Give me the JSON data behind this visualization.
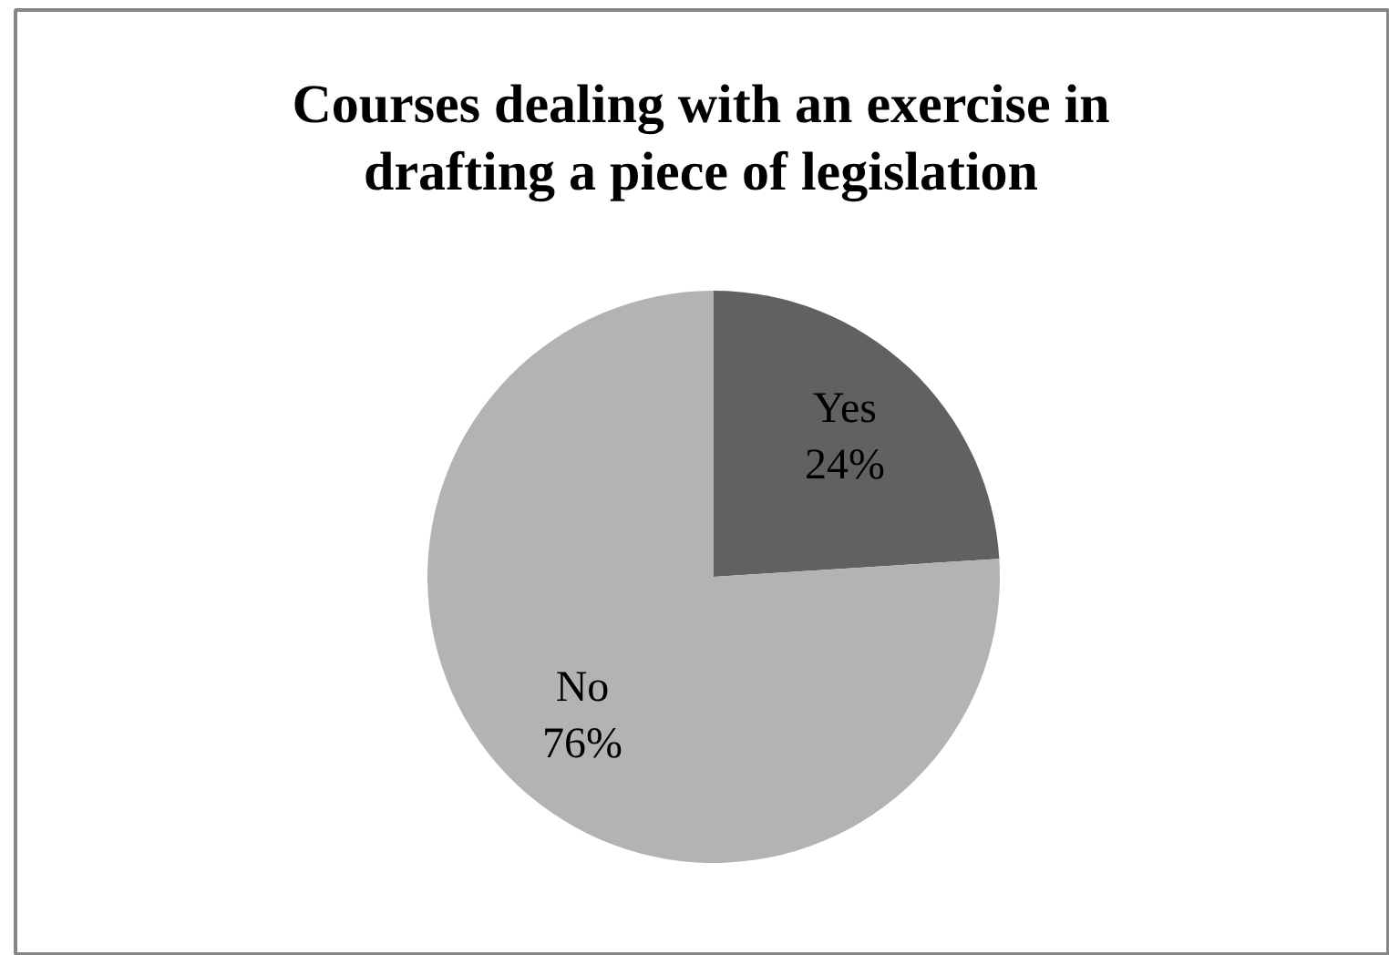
{
  "chart_data": {
    "type": "pie",
    "title": "Courses dealing with an exercise in drafting a piece of legislation",
    "categories": [
      "Yes",
      "No"
    ],
    "values": [
      24,
      76
    ],
    "colors": [
      "#616161",
      "#b3b3b3"
    ],
    "value_labels": [
      "24%",
      "76%"
    ]
  }
}
